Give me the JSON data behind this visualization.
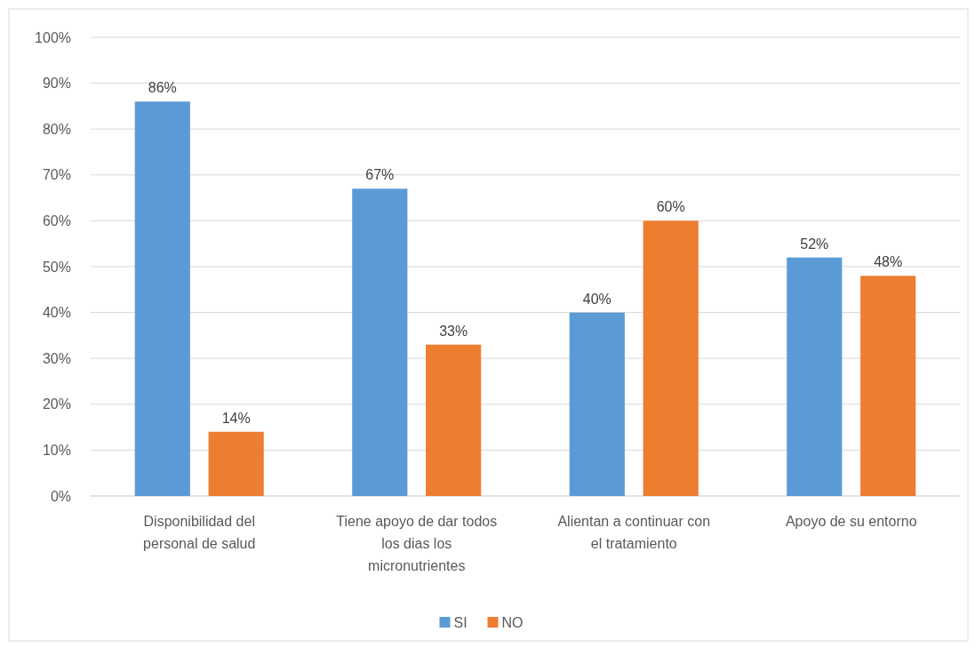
{
  "chart_data": {
    "type": "bar",
    "categories": [
      "Disponibilidad del personal de salud",
      "Tiene apoyo de dar todos los dias los micronutrientes",
      "Alientan a continuar con el tratamiento",
      "Apoyo de su entorno"
    ],
    "series": [
      {
        "name": "SI",
        "color": "#5b9bd5",
        "values": [
          86,
          67,
          40,
          52
        ],
        "value_labels": [
          "86%",
          "67%",
          "40%",
          "52%"
        ]
      },
      {
        "name": "NO",
        "color": "#ed7d31",
        "values": [
          14,
          33,
          60,
          48
        ],
        "value_labels": [
          "14%",
          "33%",
          "60%",
          "48%"
        ]
      }
    ],
    "ylim": [
      0,
      100
    ],
    "yticks": [
      {
        "value": 0,
        "label": "0%"
      },
      {
        "value": 10,
        "label": "10%"
      },
      {
        "value": 20,
        "label": "20%"
      },
      {
        "value": 30,
        "label": "30%"
      },
      {
        "value": 40,
        "label": "40%"
      },
      {
        "value": 50,
        "label": "50%"
      },
      {
        "value": 60,
        "label": "60%"
      },
      {
        "value": 70,
        "label": "70%"
      },
      {
        "value": 80,
        "label": "80%"
      },
      {
        "value": 90,
        "label": "90%"
      },
      {
        "value": 100,
        "label": "100%"
      }
    ],
    "grid": "y",
    "legend": "bottom"
  }
}
